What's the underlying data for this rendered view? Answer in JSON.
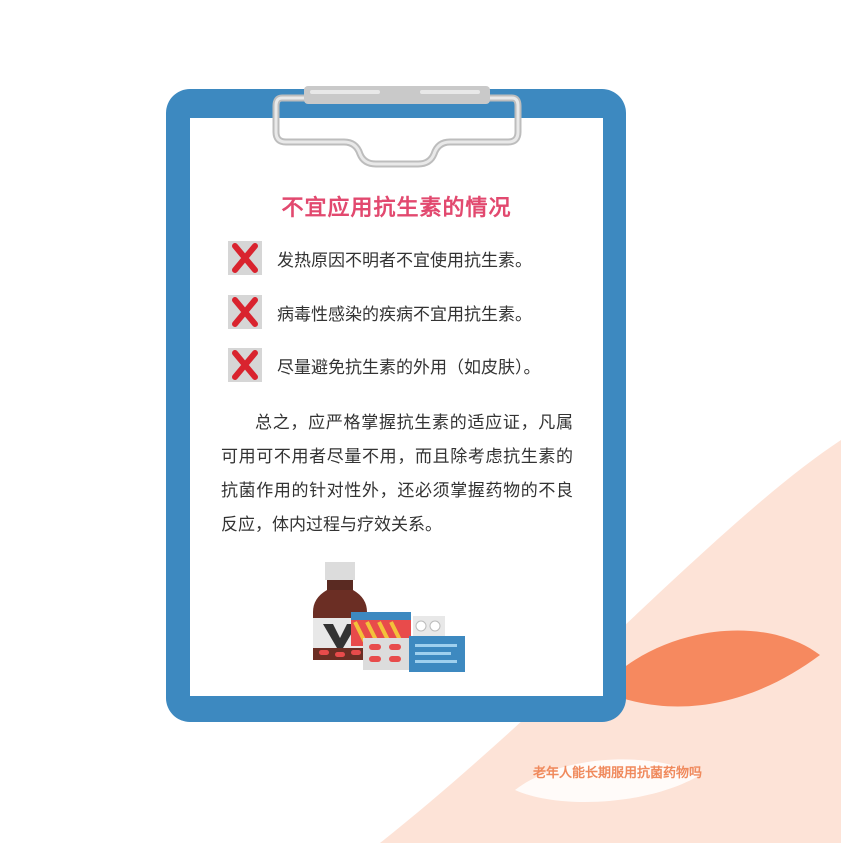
{
  "card": {
    "title": "不宜应用抗生素的情况",
    "items": [
      {
        "icon": "red-x-icon",
        "text": "发热原因不明者不宜使用抗生素。"
      },
      {
        "icon": "red-x-icon",
        "text": "病毒性感染的疾病不宜用抗生素。"
      },
      {
        "icon": "red-x-icon",
        "text": "尽量避免抗生素的外用（如皮肤）。"
      }
    ],
    "summary": "总之，应严格掌握抗生素的适应证，凡属可用可不用者尽量不用，而且除考虑抗生素的抗菌作用的针对性外，还必须掌握药物的不良反应，体内过程与疗效关系。"
  },
  "footer": {
    "caption": "老年人能长期服用抗菌药物吗"
  },
  "colors": {
    "clipboard": "#3d89c0",
    "title": "#e2496f",
    "x_mark": "#d9232e",
    "leaf": "#f6895f",
    "peach_bg": "#fde3d7"
  }
}
